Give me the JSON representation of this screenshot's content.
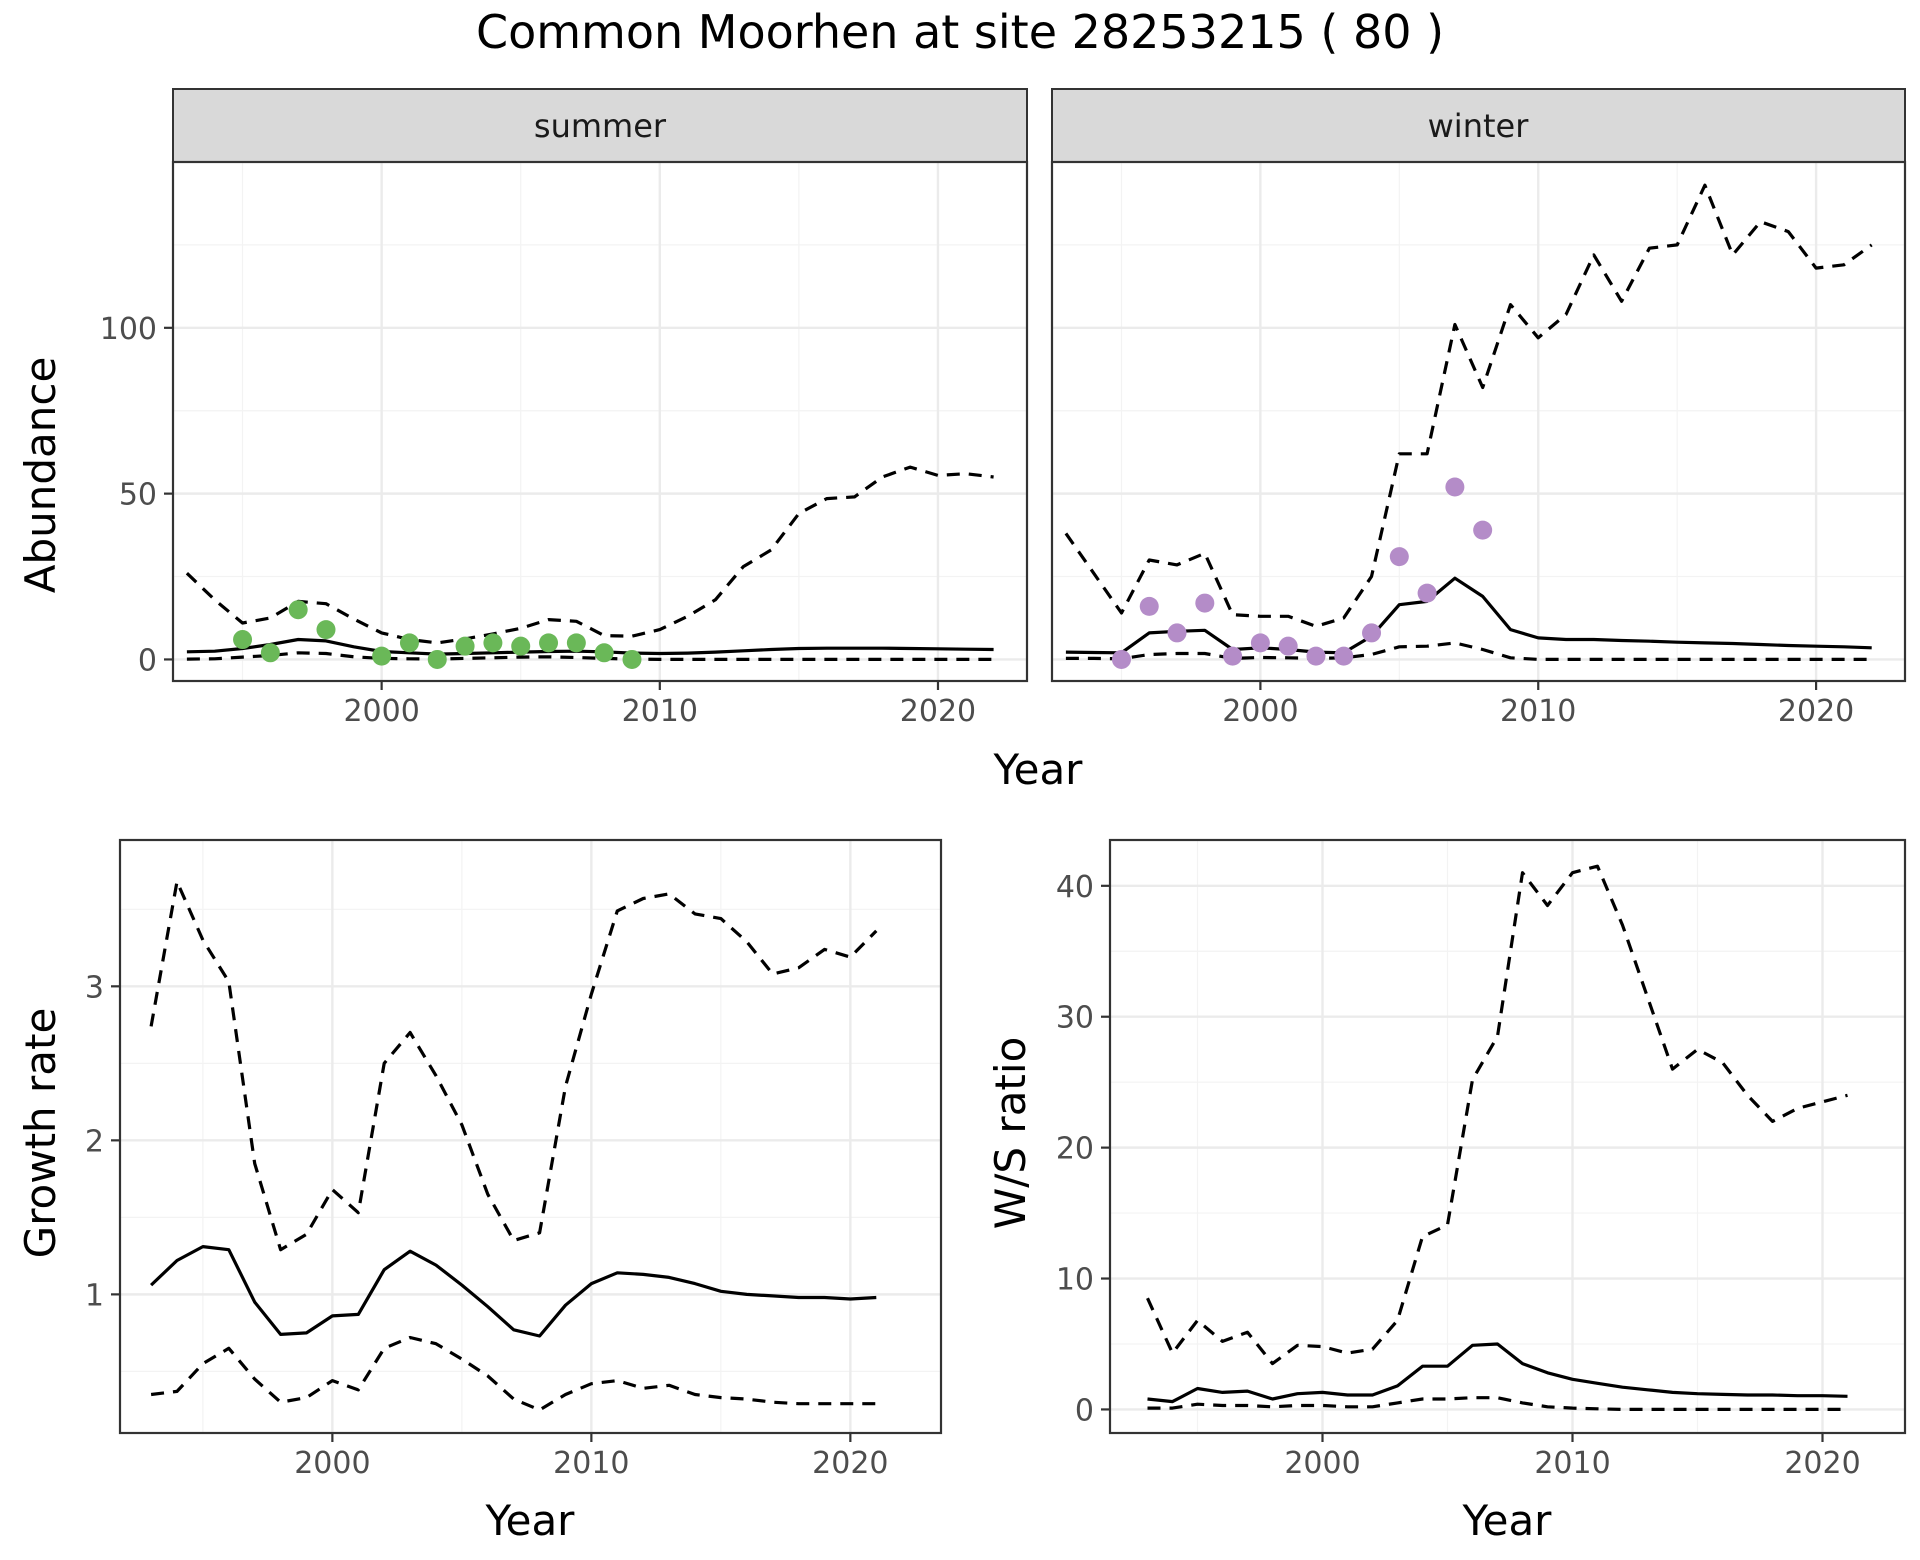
{
  "figure": {
    "title": "Common Moorhen at site 28253215 ( 80 )"
  },
  "colors": {
    "summer_points": "#6ab858",
    "winter_points": "#b48cc8",
    "line": "#000000",
    "strip_fill": "#d9d9d9",
    "grid_major": "#ebebeb",
    "grid_minor": "#f3f3f3",
    "panel_border": "#333333"
  },
  "chart_data": [
    {
      "name": "abundance-summer",
      "type": "line",
      "strip_label": "summer",
      "ylabel": "Abundance",
      "xlabel": "Year",
      "xlim": [
        1992.5,
        2023.2
      ],
      "ylim": [
        -6.5,
        150
      ],
      "x_ticks": [
        2000,
        2010,
        2020
      ],
      "y_ticks": [
        0,
        50,
        100
      ],
      "grid": true,
      "series": [
        {
          "style": "solid",
          "x": [
            1993,
            1994,
            1995,
            1996,
            1997,
            1998,
            1999,
            2000,
            2001,
            2002,
            2003,
            2004,
            2005,
            2006,
            2007,
            2008,
            2009,
            2010,
            2011,
            2012,
            2013,
            2014,
            2015,
            2016,
            2017,
            2018,
            2019,
            2020,
            2021,
            2022
          ],
          "y": [
            2.3,
            2.5,
            3.3,
            4.5,
            6.0,
            5.6,
            3.8,
            2.4,
            2.0,
            1.6,
            1.8,
            2.0,
            2.2,
            2.4,
            2.5,
            2.3,
            1.9,
            1.8,
            1.9,
            2.2,
            2.6,
            3.0,
            3.3,
            3.4,
            3.4,
            3.4,
            3.3,
            3.2,
            3.1,
            3.0
          ]
        },
        {
          "style": "dashed",
          "x": [
            1993,
            1994,
            1995,
            1996,
            1997,
            1998,
            1999,
            2000,
            2001,
            2002,
            2003,
            2004,
            2005,
            2006,
            2007,
            2008,
            2009,
            2010,
            2011,
            2012,
            2013,
            2014,
            2015,
            2016,
            2017,
            2018,
            2019,
            2020,
            2021,
            2022
          ],
          "y": [
            26,
            18,
            11,
            12.5,
            17.5,
            16.8,
            12.2,
            8,
            6,
            5,
            6.2,
            7.7,
            9.4,
            12,
            11.5,
            7.2,
            7,
            9,
            13,
            18,
            28,
            33,
            44,
            48.5,
            49,
            55,
            58,
            55.5,
            56,
            55
          ]
        },
        {
          "style": "dashed",
          "x": [
            1993,
            1994,
            1995,
            1996,
            1997,
            1998,
            1999,
            2000,
            2001,
            2002,
            2003,
            2004,
            2005,
            2006,
            2007,
            2008,
            2009,
            2010,
            2011,
            2012,
            2013,
            2014,
            2015,
            2016,
            2017,
            2018,
            2019,
            2020,
            2021,
            2022
          ],
          "y": [
            0.1,
            0.2,
            0.7,
            1.2,
            2.0,
            1.8,
            0.8,
            0.3,
            0.2,
            0.1,
            0.3,
            0.5,
            0.7,
            0.8,
            0.6,
            0.3,
            0.1,
            0,
            0,
            0,
            0,
            0,
            0,
            0,
            0,
            0,
            0,
            0,
            0,
            0
          ]
        }
      ],
      "points": {
        "x": [
          1995,
          1996,
          1997,
          1998,
          2000,
          2001,
          2002,
          2003,
          2004,
          2005,
          2006,
          2007,
          2008,
          2009
        ],
        "y": [
          6,
          2,
          15,
          9,
          1,
          5,
          0,
          4,
          5,
          4,
          5,
          5,
          2,
          0
        ]
      }
    },
    {
      "name": "abundance-winter",
      "type": "line",
      "strip_label": "winter",
      "xlabel": "Year",
      "xlim": [
        1992.5,
        2023.2
      ],
      "ylim": [
        -6.5,
        150
      ],
      "x_ticks": [
        2000,
        2010,
        2020
      ],
      "y_ticks": [
        0,
        50,
        100
      ],
      "grid": true,
      "series": [
        {
          "style": "solid",
          "x": [
            1993,
            1994,
            1995,
            1996,
            1997,
            1998,
            1999,
            2000,
            2001,
            2002,
            2003,
            2004,
            2005,
            2006,
            2007,
            2008,
            2009,
            2010,
            2011,
            2012,
            2013,
            2014,
            2015,
            2016,
            2017,
            2018,
            2019,
            2020,
            2021,
            2022
          ],
          "y": [
            2.2,
            2.1,
            2.0,
            8.0,
            8.5,
            8.8,
            3.0,
            3.5,
            3.0,
            2.2,
            2.0,
            7.0,
            16.5,
            17.5,
            24.5,
            19,
            9,
            6.5,
            6,
            6,
            5.7,
            5.5,
            5.2,
            5,
            4.8,
            4.5,
            4.2,
            4,
            3.8,
            3.5
          ]
        },
        {
          "style": "dashed",
          "x": [
            1993,
            1994,
            1995,
            1996,
            1997,
            1998,
            1999,
            2000,
            2001,
            2002,
            2003,
            2004,
            2005,
            2006,
            2007,
            2008,
            2009,
            2010,
            2011,
            2012,
            2013,
            2014,
            2015,
            2016,
            2017,
            2018,
            2019,
            2020,
            2021,
            2022
          ],
          "y": [
            38,
            26,
            14,
            30,
            28.5,
            32,
            13.5,
            13,
            13,
            10,
            12.5,
            25,
            62,
            62,
            101,
            82,
            107,
            97,
            104,
            122,
            108,
            124,
            125,
            143,
            122,
            132,
            129,
            118,
            119,
            125
          ]
        },
        {
          "style": "dashed",
          "x": [
            1993,
            1994,
            1995,
            1996,
            1997,
            1998,
            1999,
            2000,
            2001,
            2002,
            2003,
            2004,
            2005,
            2006,
            2007,
            2008,
            2009,
            2010,
            2011,
            2012,
            2013,
            2014,
            2015,
            2016,
            2017,
            2018,
            2019,
            2020,
            2021,
            2022
          ],
          "y": [
            0.3,
            0.3,
            0.2,
            1.5,
            1.8,
            1.8,
            0.3,
            0.6,
            0.5,
            0.3,
            0.5,
            1.5,
            3.8,
            4.0,
            5.0,
            3.0,
            0.5,
            0,
            0,
            0,
            0,
            0,
            0,
            0,
            0,
            0,
            0,
            0,
            0,
            0
          ]
        }
      ],
      "points": {
        "x": [
          1995,
          1996,
          1997,
          1998,
          1999,
          2000,
          2001,
          2002,
          2003,
          2004,
          2005,
          2006,
          2007,
          2008
        ],
        "y": [
          0,
          16,
          8,
          17,
          1,
          5,
          4,
          1,
          1,
          8,
          31,
          20,
          52,
          39
        ]
      }
    },
    {
      "name": "growth-rate",
      "type": "line",
      "ylabel": "Growth rate",
      "xlabel": "Year",
      "xlim": [
        1991.8,
        2023.5
      ],
      "ylim": [
        0.1,
        3.95
      ],
      "x_ticks": [
        2000,
        2010,
        2020
      ],
      "y_ticks": [
        1,
        2,
        3
      ],
      "grid": true,
      "series": [
        {
          "style": "solid",
          "x": [
            1993,
            1994,
            1995,
            1996,
            1997,
            1998,
            1999,
            2000,
            2001,
            2002,
            2003,
            2004,
            2005,
            2006,
            2007,
            2008,
            2009,
            2010,
            2011,
            2012,
            2013,
            2014,
            2015,
            2016,
            2017,
            2018,
            2019,
            2020,
            2021
          ],
          "y": [
            1.06,
            1.22,
            1.31,
            1.29,
            0.95,
            0.74,
            0.75,
            0.86,
            0.87,
            1.16,
            1.28,
            1.19,
            1.06,
            0.92,
            0.77,
            0.73,
            0.93,
            1.07,
            1.14,
            1.13,
            1.11,
            1.07,
            1.02,
            1.0,
            0.99,
            0.98,
            0.98,
            0.97,
            0.98
          ]
        },
        {
          "style": "dashed",
          "x": [
            1993,
            1994,
            1995,
            1996,
            1997,
            1998,
            1999,
            2000,
            2001,
            2002,
            2003,
            2004,
            2005,
            2006,
            2007,
            2008,
            2009,
            2010,
            2011,
            2012,
            2013,
            2014,
            2015,
            2016,
            2017,
            2018,
            2019,
            2020,
            2021
          ],
          "y": [
            2.74,
            3.68,
            3.3,
            3.03,
            1.85,
            1.29,
            1.39,
            1.68,
            1.53,
            2.5,
            2.7,
            2.42,
            2.1,
            1.65,
            1.35,
            1.4,
            2.35,
            2.95,
            3.49,
            3.57,
            3.6,
            3.47,
            3.44,
            3.29,
            3.08,
            3.12,
            3.24,
            3.19,
            3.36
          ]
        },
        {
          "style": "dashed",
          "x": [
            1993,
            1994,
            1995,
            1996,
            1997,
            1998,
            1999,
            2000,
            2001,
            2002,
            2003,
            2004,
            2005,
            2006,
            2007,
            2008,
            2009,
            2010,
            2011,
            2012,
            2013,
            2014,
            2015,
            2016,
            2017,
            2018,
            2019,
            2020,
            2021
          ],
          "y": [
            0.35,
            0.37,
            0.55,
            0.65,
            0.45,
            0.3,
            0.33,
            0.44,
            0.38,
            0.65,
            0.72,
            0.68,
            0.58,
            0.47,
            0.32,
            0.25,
            0.35,
            0.42,
            0.44,
            0.39,
            0.41,
            0.35,
            0.33,
            0.32,
            0.3,
            0.29,
            0.29,
            0.29,
            0.29
          ]
        }
      ]
    },
    {
      "name": "ws-ratio",
      "type": "line",
      "ylabel": "W/S ratio",
      "xlabel": "Year",
      "xlim": [
        1991.5,
        2023.3
      ],
      "ylim": [
        -1.8,
        43.5
      ],
      "x_ticks": [
        2000,
        2010,
        2020
      ],
      "y_ticks": [
        0,
        10,
        20,
        30,
        40
      ],
      "grid": true,
      "series": [
        {
          "style": "solid",
          "x": [
            1993,
            1994,
            1995,
            1996,
            1997,
            1998,
            1999,
            2000,
            2001,
            2002,
            2003,
            2004,
            2005,
            2006,
            2007,
            2008,
            2009,
            2010,
            2011,
            2012,
            2013,
            2014,
            2015,
            2016,
            2017,
            2018,
            2019,
            2020,
            2021
          ],
          "y": [
            0.8,
            0.6,
            1.6,
            1.3,
            1.4,
            0.8,
            1.2,
            1.3,
            1.1,
            1.1,
            1.8,
            3.3,
            3.3,
            4.9,
            5.0,
            3.5,
            2.8,
            2.3,
            2.0,
            1.7,
            1.5,
            1.3,
            1.2,
            1.15,
            1.1,
            1.1,
            1.05,
            1.05,
            1.0
          ]
        },
        {
          "style": "dashed",
          "x": [
            1993,
            1994,
            1995,
            1996,
            1997,
            1998,
            1999,
            2000,
            2001,
            2002,
            2003,
            2004,
            2005,
            2006,
            2007,
            2008,
            2009,
            2010,
            2011,
            2012,
            2013,
            2014,
            2015,
            2016,
            2017,
            2018,
            2019,
            2020,
            2021
          ],
          "y": [
            8.5,
            4.3,
            6.8,
            5.2,
            5.9,
            3.5,
            4.9,
            4.8,
            4.3,
            4.6,
            6.8,
            13.2,
            14.1,
            25.2,
            28.5,
            41,
            38.5,
            41,
            41.5,
            37,
            31.5,
            26,
            27.5,
            26.5,
            24,
            22,
            23,
            23.5,
            24
          ]
        },
        {
          "style": "dashed",
          "x": [
            1993,
            1994,
            1995,
            1996,
            1997,
            1998,
            1999,
            2000,
            2001,
            2002,
            2003,
            2004,
            2005,
            2006,
            2007,
            2008,
            2009,
            2010,
            2011,
            2012,
            2013,
            2014,
            2015,
            2016,
            2017,
            2018,
            2019,
            2020,
            2021
          ],
          "y": [
            0.1,
            0.1,
            0.4,
            0.3,
            0.3,
            0.2,
            0.3,
            0.3,
            0.2,
            0.2,
            0.5,
            0.8,
            0.8,
            0.9,
            0.9,
            0.5,
            0.2,
            0.1,
            0.05,
            0,
            0,
            0,
            0,
            0,
            0,
            0,
            0,
            0,
            0
          ]
        }
      ]
    }
  ]
}
